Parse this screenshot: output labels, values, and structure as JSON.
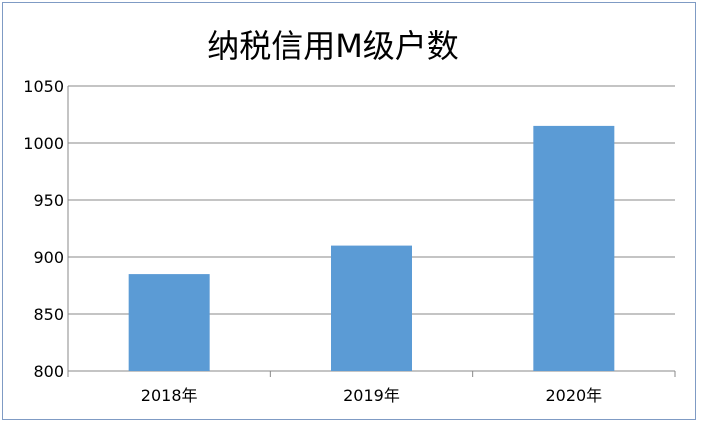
{
  "chart_data": {
    "type": "bar",
    "title": "纳税信用M级户数",
    "categories": [
      "2018年",
      "2019年",
      "2020年"
    ],
    "values": [
      885,
      910,
      1015
    ],
    "ylim": [
      800,
      1050
    ],
    "yticks": [
      800,
      850,
      900,
      950,
      1000,
      1050
    ],
    "grid": true,
    "legend": "none",
    "bar_color": "#5b9bd5",
    "grid_color": "#888888",
    "axis_color": "#888888"
  }
}
